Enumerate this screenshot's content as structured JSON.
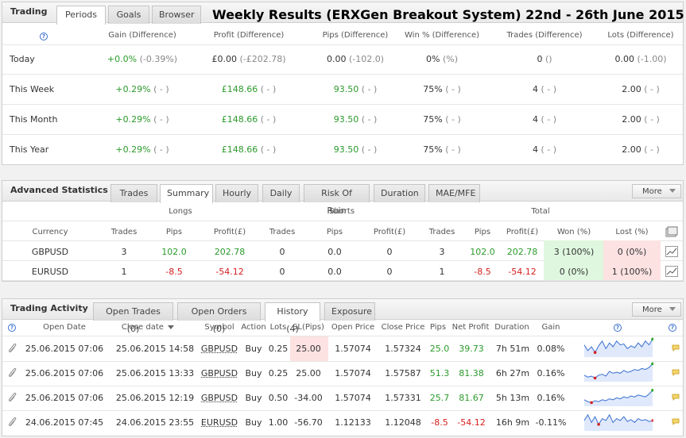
{
  "trading": {
    "title": "Trading",
    "tabs": [
      "Periods",
      "Goals",
      "Browser"
    ],
    "headline": "Weekly Results (ERXGen Breakout System) 22nd - 26th June 2015",
    "columns": [
      "Gain (Difference)",
      "Profit (Difference)",
      "Pips (Difference)",
      "Win % (Difference)",
      "Trades (Difference)",
      "Lots (Difference)"
    ],
    "rows": [
      {
        "period": "Today",
        "gain": "+0.0%",
        "gain_diff": "(-0.39%)",
        "profit": "£0.00",
        "profit_diff": "(-£202.78)",
        "pips": "0.00",
        "pips_diff": "(-102.0)",
        "win": "0%",
        "win_diff": "(%)",
        "trades": "0",
        "trades_diff": "()",
        "lots": "0.00",
        "lots_diff": "(-1.00)"
      },
      {
        "period": "This Week",
        "gain": "+0.29%",
        "gain_diff": "( - )",
        "profit": "£148.66",
        "profit_diff": "( - )",
        "pips": "93.50",
        "pips_diff": "( - )",
        "win": "75%",
        "win_diff": "( - )",
        "trades": "4",
        "trades_diff": "( - )",
        "lots": "2.00",
        "lots_diff": "( - )"
      },
      {
        "period": "This Month",
        "gain": "+0.29%",
        "gain_diff": "( - )",
        "profit": "£148.66",
        "profit_diff": "( - )",
        "pips": "93.50",
        "pips_diff": "( - )",
        "win": "75%",
        "win_diff": "( - )",
        "trades": "4",
        "trades_diff": "( - )",
        "lots": "2.00",
        "lots_diff": "( - )"
      },
      {
        "period": "This Year",
        "gain": "+0.29%",
        "gain_diff": "( - )",
        "profit": "£148.66",
        "profit_diff": "( - )",
        "pips": "93.50",
        "pips_diff": "( - )",
        "win": "75%",
        "win_diff": "( - )",
        "trades": "4",
        "trades_diff": "( - )",
        "lots": "2.00",
        "lots_diff": "( - )"
      }
    ]
  },
  "advanced": {
    "title": "Advanced Statistics",
    "tabs": [
      "Trades",
      "Summary",
      "Hourly",
      "Daily",
      "Risk Of Ruin",
      "Duration",
      "MAE/MFE"
    ],
    "more": "More",
    "groups": [
      "Longs",
      "Shorts",
      "Total"
    ],
    "columns": [
      "Currency",
      "Trades",
      "Pips",
      "Profit(£)",
      "Trades",
      "Pips",
      "Profit(£)",
      "Trades",
      "Pips",
      "Profit(£)",
      "Won (%)",
      "Lost (%)"
    ],
    "rows": [
      {
        "currency": "GBPUSD",
        "l_trades": "3",
        "l_pips": "102.0",
        "l_profit": "202.78",
        "s_trades": "0",
        "s_pips": "0.0",
        "s_profit": "0",
        "t_trades": "3",
        "t_pips": "102.0",
        "t_profit": "202.78",
        "won": "3 (100%)",
        "lost": "0 (0%)"
      },
      {
        "currency": "EURUSD",
        "l_trades": "1",
        "l_pips": "-8.5",
        "l_profit": "-54.12",
        "s_trades": "0",
        "s_pips": "0.0",
        "s_profit": "0",
        "t_trades": "1",
        "t_pips": "-8.5",
        "t_profit": "-54.12",
        "won": "0 (0%)",
        "lost": "1 (100%)"
      }
    ]
  },
  "activity": {
    "title": "Trading Activity",
    "tabs": [
      "Open Trades (0)",
      "Open Orders (0)",
      "History (4)",
      "Exposure"
    ],
    "more": "More",
    "columns": [
      "Open Date",
      "Close date",
      "Symbol",
      "Action",
      "Lots",
      "SL(Pips)",
      "Open Price",
      "Close Price",
      "Pips",
      "Net Profit",
      "Duration",
      "Gain"
    ],
    "rows": [
      {
        "open": "25.06.2015 07:06",
        "close": "25.06.2015 14:58",
        "symbol": "GBPUSD",
        "action": "Buy",
        "lots": "0.25",
        "sl": "25.00",
        "open_price": "1.57074",
        "close_price": "1.57324",
        "pips": "25.0",
        "profit": "39.73",
        "duration": "7h 51m",
        "gain": "0.08%",
        "spark": [
          0.4,
          0.7,
          0.5,
          0.8,
          0.45,
          0.2,
          0.6,
          0.3,
          0.5,
          0.2,
          0.4,
          0.35,
          0.6,
          0.45,
          0.55,
          0.3,
          0.5,
          0.2,
          0.4,
          0.1
        ],
        "end": "up"
      },
      {
        "open": "25.06.2015 07:06",
        "close": "25.06.2015 13:33",
        "symbol": "GBPUSD",
        "action": "Buy",
        "lots": "0.25",
        "sl": "25.00",
        "open_price": "1.57074",
        "close_price": "1.57587",
        "pips": "51.3",
        "profit": "81.38",
        "duration": "6h 27m",
        "gain": "0.16%",
        "spark": [
          0.7,
          0.8,
          0.75,
          0.85,
          0.7,
          0.65,
          0.75,
          0.5,
          0.6,
          0.55,
          0.6,
          0.45,
          0.55,
          0.5,
          0.4,
          0.45,
          0.35,
          0.4,
          0.3,
          0.1
        ],
        "end": "up"
      },
      {
        "open": "25.06.2015 07:06",
        "close": "25.06.2015 12:19",
        "symbol": "GBPUSD",
        "action": "Buy",
        "lots": "0.50",
        "sl": "-34.00",
        "open_price": "1.57074",
        "close_price": "1.57331",
        "pips": "25.7",
        "profit": "81.67",
        "duration": "5h 13m",
        "gain": "0.16%",
        "spark": [
          0.7,
          0.8,
          0.85,
          0.75,
          0.8,
          0.7,
          0.75,
          0.65,
          0.7,
          0.6,
          0.65,
          0.55,
          0.6,
          0.5,
          0.55,
          0.45,
          0.5,
          0.55,
          0.4,
          0.2
        ],
        "end": "up"
      },
      {
        "open": "24.06.2015 07:45",
        "close": "24.06.2015 23:55",
        "symbol": "EURUSD",
        "action": "Buy",
        "lots": "1.00",
        "sl": "-56.70",
        "open_price": "1.12133",
        "close_price": "1.12048",
        "pips": "-8.5",
        "profit": "-54.12",
        "duration": "16h 9m",
        "gain": "-0.11%",
        "spark": [
          0.5,
          0.2,
          0.6,
          0.3,
          0.7,
          0.4,
          0.5,
          0.2,
          0.6,
          0.4,
          0.5,
          0.3,
          0.55,
          0.45,
          0.6,
          0.4,
          0.5,
          0.45,
          0.55,
          0.5
        ],
        "end": "down"
      }
    ]
  },
  "colors": {
    "green": "#2c9a2c",
    "red": "#d62020",
    "accent_blue": "#3a6fd1"
  }
}
